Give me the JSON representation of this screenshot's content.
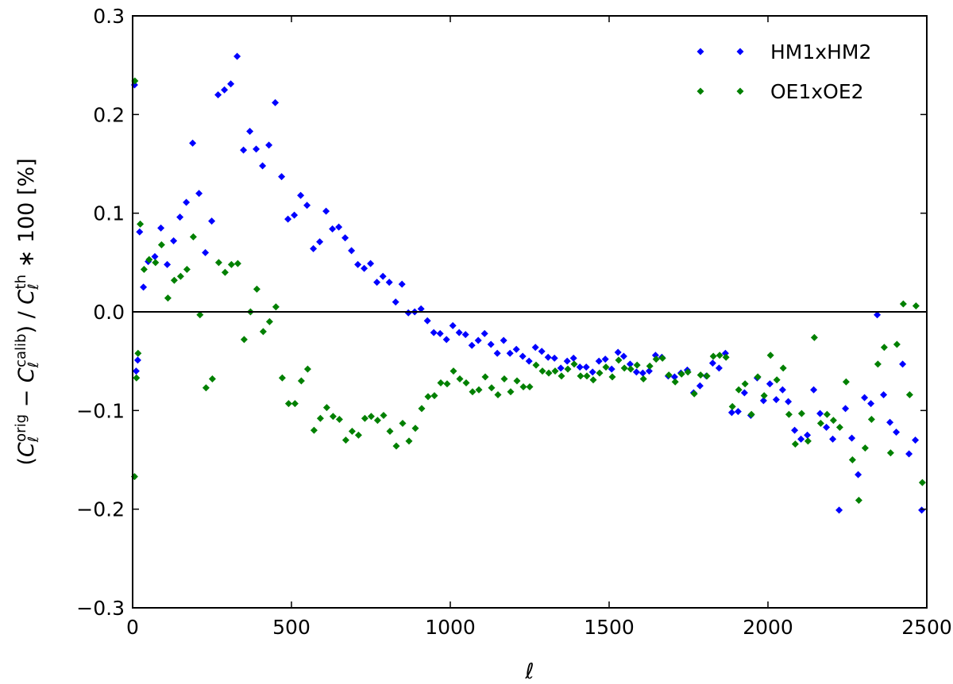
{
  "chart_data": {
    "type": "scatter",
    "title": "",
    "xlabel": "ℓ",
    "ylabel": "(C_ℓ^orig − C_ℓ^calib) / C_ℓ^th ∗ 100 [%]",
    "ylabel_parts": [
      {
        "t": "(",
        "s": "n"
      },
      {
        "t": "C",
        "s": "i"
      },
      {
        "t": "ℓ",
        "s": "sub"
      },
      {
        "t": "orig",
        "s": "sup"
      },
      {
        "t": " − ",
        "s": "n"
      },
      {
        "t": "C",
        "s": "i"
      },
      {
        "t": "ℓ",
        "s": "sub"
      },
      {
        "t": "calib",
        "s": "sup"
      },
      {
        "t": ") / ",
        "s": "n"
      },
      {
        "t": "C",
        "s": "i"
      },
      {
        "t": "ℓ",
        "s": "sub"
      },
      {
        "t": "th",
        "s": "sup"
      },
      {
        "t": " ∗ 100 [%]",
        "s": "n"
      }
    ],
    "xlim": [
      0,
      2500
    ],
    "ylim": [
      -0.3,
      0.3
    ],
    "xticks": [
      0,
      500,
      1000,
      1500,
      2000,
      2500
    ],
    "xtick_labels": [
      "0",
      "500",
      "1000",
      "1500",
      "2000",
      "2500"
    ],
    "yticks": [
      0.3,
      0.2,
      0.1,
      0.0,
      -0.1,
      -0.2,
      -0.3
    ],
    "ytick_labels": [
      "0.3",
      "0.2",
      "0.1",
      "0.0",
      "−0.1",
      "−0.2",
      "−0.3"
    ],
    "grid": false,
    "hline": 0,
    "legend_position": "top-right",
    "series": [
      {
        "name": "HM1xHM2",
        "color": "#0000ff",
        "marker": "diamond",
        "x": [
          6,
          11,
          16,
          22,
          34,
          49,
          70,
          89,
          109,
          129,
          149,
          169,
          189,
          209,
          229,
          249,
          269,
          289,
          309,
          329,
          349,
          369,
          389,
          409,
          429,
          449,
          469,
          489,
          509,
          529,
          549,
          569,
          589,
          609,
          629,
          649,
          669,
          689,
          709,
          729,
          749,
          769,
          788,
          808,
          828,
          848,
          868,
          888,
          908,
          928,
          948,
          968,
          988,
          1008,
          1028,
          1048,
          1068,
          1088,
          1108,
          1128,
          1148,
          1168,
          1188,
          1208,
          1228,
          1248,
          1268,
          1288,
          1308,
          1328,
          1348,
          1368,
          1388,
          1408,
          1428,
          1448,
          1468,
          1488,
          1508,
          1528,
          1546,
          1566,
          1586,
          1606,
          1626,
          1646,
          1666,
          1686,
          1706,
          1726,
          1746,
          1766,
          1786,
          1806,
          1826,
          1846,
          1866,
          1886,
          1906,
          1926,
          1946,
          1966,
          1986,
          2006,
          2026,
          2046,
          2064,
          2084,
          2104,
          2124,
          2144,
          2164,
          2184,
          2204,
          2224,
          2244,
          2264,
          2284,
          2304,
          2324,
          2344,
          2364,
          2384,
          2404,
          2424,
          2444,
          2464,
          2484
        ],
        "y": [
          0.23,
          -0.06,
          -0.049,
          0.081,
          0.025,
          0.051,
          0.056,
          0.085,
          0.048,
          0.072,
          0.096,
          0.111,
          0.171,
          0.12,
          0.06,
          0.092,
          0.22,
          0.225,
          0.231,
          0.259,
          0.164,
          0.183,
          0.165,
          0.148,
          0.169,
          0.212,
          0.137,
          0.094,
          0.098,
          0.118,
          0.108,
          0.064,
          0.071,
          0.102,
          0.084,
          0.086,
          0.075,
          0.062,
          0.048,
          0.044,
          0.049,
          0.03,
          0.036,
          0.03,
          0.01,
          0.028,
          -0.001,
          0.0,
          0.003,
          -0.009,
          -0.021,
          -0.022,
          -0.028,
          -0.014,
          -0.021,
          -0.023,
          -0.034,
          -0.029,
          -0.022,
          -0.033,
          -0.042,
          -0.029,
          -0.042,
          -0.038,
          -0.045,
          -0.05,
          -0.036,
          -0.04,
          -0.046,
          -0.047,
          -0.057,
          -0.05,
          -0.047,
          -0.056,
          -0.056,
          -0.061,
          -0.05,
          -0.048,
          -0.058,
          -0.041,
          -0.045,
          -0.053,
          -0.061,
          -0.062,
          -0.06,
          -0.044,
          -0.046,
          -0.065,
          -0.066,
          -0.062,
          -0.059,
          -0.082,
          -0.075,
          -0.065,
          -0.052,
          -0.057,
          -0.042,
          -0.102,
          -0.101,
          -0.082,
          -0.105,
          -0.067,
          -0.09,
          -0.073,
          -0.089,
          -0.079,
          -0.091,
          -0.12,
          -0.129,
          -0.125,
          -0.079,
          -0.103,
          -0.117,
          -0.129,
          -0.201,
          -0.098,
          -0.128,
          -0.165,
          -0.087,
          -0.093,
          -0.003,
          -0.084,
          -0.112,
          -0.122,
          -0.053,
          -0.144,
          -0.13,
          -0.201
        ]
      },
      {
        "name": "OE1xOE2",
        "color": "#008000",
        "marker": "diamond",
        "x": [
          6,
          7,
          12,
          17,
          24,
          36,
          52,
          72,
          91,
          111,
          131,
          151,
          171,
          191,
          212,
          231,
          251,
          271,
          291,
          311,
          331,
          351,
          371,
          391,
          411,
          431,
          451,
          471,
          491,
          511,
          531,
          551,
          571,
          591,
          611,
          631,
          651,
          671,
          691,
          711,
          731,
          751,
          771,
          790,
          810,
          830,
          850,
          870,
          890,
          910,
          930,
          950,
          970,
          990,
          1010,
          1030,
          1050,
          1070,
          1090,
          1110,
          1130,
          1150,
          1170,
          1190,
          1210,
          1230,
          1250,
          1270,
          1290,
          1310,
          1330,
          1350,
          1370,
          1390,
          1410,
          1430,
          1450,
          1470,
          1490,
          1510,
          1530,
          1548,
          1568,
          1588,
          1608,
          1628,
          1648,
          1668,
          1688,
          1708,
          1728,
          1748,
          1768,
          1788,
          1808,
          1828,
          1848,
          1868,
          1888,
          1908,
          1928,
          1948,
          1968,
          1988,
          2008,
          2028,
          2048,
          2066,
          2086,
          2106,
          2126,
          2146,
          2166,
          2186,
          2206,
          2226,
          2246,
          2266,
          2286,
          2306,
          2326,
          2346,
          2366,
          2386,
          2406,
          2426,
          2446,
          2466,
          2486
        ],
        "y": [
          -0.167,
          0.234,
          -0.067,
          -0.042,
          0.089,
          0.043,
          0.053,
          0.05,
          0.068,
          0.014,
          0.032,
          0.036,
          0.043,
          0.076,
          -0.003,
          -0.077,
          -0.068,
          0.05,
          0.04,
          0.048,
          0.049,
          -0.028,
          0.0,
          0.023,
          -0.02,
          -0.01,
          0.005,
          -0.067,
          -0.093,
          -0.093,
          -0.07,
          -0.058,
          -0.12,
          -0.108,
          -0.097,
          -0.106,
          -0.109,
          -0.13,
          -0.121,
          -0.125,
          -0.108,
          -0.106,
          -0.11,
          -0.105,
          -0.121,
          -0.136,
          -0.113,
          -0.131,
          -0.118,
          -0.098,
          -0.086,
          -0.085,
          -0.072,
          -0.073,
          -0.06,
          -0.068,
          -0.072,
          -0.081,
          -0.079,
          -0.066,
          -0.077,
          -0.084,
          -0.068,
          -0.081,
          -0.07,
          -0.076,
          -0.076,
          -0.054,
          -0.06,
          -0.062,
          -0.06,
          -0.065,
          -0.058,
          -0.053,
          -0.065,
          -0.065,
          -0.069,
          -0.062,
          -0.056,
          -0.066,
          -0.049,
          -0.057,
          -0.058,
          -0.054,
          -0.068,
          -0.055,
          -0.048,
          -0.047,
          -0.064,
          -0.071,
          -0.063,
          -0.061,
          -0.083,
          -0.064,
          -0.065,
          -0.045,
          -0.044,
          -0.046,
          -0.096,
          -0.079,
          -0.073,
          -0.104,
          -0.066,
          -0.085,
          -0.044,
          -0.069,
          -0.057,
          -0.104,
          -0.134,
          -0.103,
          -0.131,
          -0.026,
          -0.113,
          -0.104,
          -0.11,
          -0.117,
          -0.071,
          -0.15,
          -0.191,
          -0.138,
          -0.109,
          -0.053,
          -0.036,
          -0.143,
          -0.033,
          0.008,
          -0.084,
          0.006,
          -0.173
        ]
      }
    ]
  }
}
